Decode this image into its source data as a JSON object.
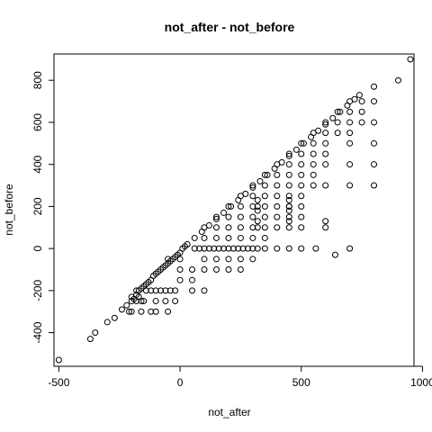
{
  "chart_data": {
    "type": "scatter",
    "title": "not_after - not_before",
    "xlabel": "not_after",
    "ylabel": "not_before",
    "xlim": [
      -520,
      965
    ],
    "ylim": [
      -560,
      925
    ],
    "xticks": [
      -500,
      0,
      500,
      1000
    ],
    "yticks": [
      -400,
      -200,
      0,
      200,
      400,
      600,
      800
    ],
    "grid": false,
    "legend": "none",
    "marker": "open-circle",
    "series": [
      {
        "points": [
          [
            -500,
            -530
          ],
          [
            -370,
            -430
          ],
          [
            -350,
            -400
          ],
          [
            -300,
            -350
          ],
          [
            -270,
            -330
          ],
          [
            -240,
            -290
          ],
          [
            -220,
            -270
          ],
          [
            -210,
            -300
          ],
          [
            -200,
            -300
          ],
          [
            -200,
            -250
          ],
          [
            -190,
            -240
          ],
          [
            -180,
            -220
          ],
          [
            -170,
            -200
          ],
          [
            -160,
            -190
          ],
          [
            -150,
            -180
          ],
          [
            -140,
            -170
          ],
          [
            -130,
            -160
          ],
          [
            -120,
            -150
          ],
          [
            -110,
            -130
          ],
          [
            -100,
            -120
          ],
          [
            -90,
            -110
          ],
          [
            -80,
            -100
          ],
          [
            -70,
            -90
          ],
          [
            -60,
            -80
          ],
          [
            -50,
            -70
          ],
          [
            -40,
            -60
          ],
          [
            -30,
            -50
          ],
          [
            -20,
            -40
          ],
          [
            -10,
            -30
          ],
          [
            0,
            -20
          ],
          [
            10,
            0
          ],
          [
            20,
            10
          ],
          [
            -200,
            -230
          ],
          [
            -180,
            -250
          ],
          [
            -160,
            -250
          ],
          [
            -140,
            -200
          ],
          [
            -120,
            -200
          ],
          [
            -100,
            -200
          ],
          [
            -80,
            -200
          ],
          [
            -60,
            -200
          ],
          [
            -40,
            -200
          ],
          [
            -20,
            -200
          ],
          [
            -100,
            -250
          ],
          [
            -100,
            -300
          ],
          [
            -60,
            -250
          ],
          [
            -50,
            -300
          ],
          [
            -20,
            -250
          ],
          [
            50,
            -200
          ],
          [
            100,
            -200
          ],
          [
            0,
            -150
          ],
          [
            50,
            -150
          ],
          [
            -180,
            -200
          ],
          [
            -160,
            -300
          ],
          [
            -120,
            -300
          ],
          [
            -150,
            -250
          ],
          [
            -170,
            -230
          ],
          [
            30,
            20
          ],
          [
            60,
            50
          ],
          [
            90,
            80
          ],
          [
            120,
            110
          ],
          [
            150,
            140
          ],
          [
            180,
            170
          ],
          [
            210,
            200
          ],
          [
            240,
            230
          ],
          [
            270,
            260
          ],
          [
            300,
            290
          ],
          [
            330,
            320
          ],
          [
            360,
            350
          ],
          [
            390,
            380
          ],
          [
            420,
            410
          ],
          [
            450,
            440
          ],
          [
            480,
            470
          ],
          [
            510,
            500
          ],
          [
            540,
            530
          ],
          [
            570,
            560
          ],
          [
            600,
            590
          ],
          [
            630,
            620
          ],
          [
            660,
            650
          ],
          [
            690,
            680
          ],
          [
            720,
            710
          ],
          [
            740,
            730
          ],
          [
            60,
            0
          ],
          [
            80,
            0
          ],
          [
            100,
            0
          ],
          [
            120,
            0
          ],
          [
            140,
            0
          ],
          [
            160,
            0
          ],
          [
            180,
            0
          ],
          [
            200,
            0
          ],
          [
            220,
            0
          ],
          [
            240,
            0
          ],
          [
            260,
            0
          ],
          [
            280,
            0
          ],
          [
            300,
            0
          ],
          [
            320,
            0
          ],
          [
            350,
            0
          ],
          [
            400,
            0
          ],
          [
            450,
            0
          ],
          [
            500,
            0
          ],
          [
            560,
            0
          ],
          [
            700,
            0
          ],
          [
            100,
            -50
          ],
          [
            150,
            -50
          ],
          [
            200,
            -50
          ],
          [
            250,
            -50
          ],
          [
            300,
            -50
          ],
          [
            100,
            -100
          ],
          [
            150,
            -100
          ],
          [
            200,
            -100
          ],
          [
            250,
            -100
          ],
          [
            50,
            -100
          ],
          [
            0,
            -100
          ],
          [
            0,
            -50
          ],
          [
            -50,
            -50
          ],
          [
            640,
            -30
          ],
          [
            100,
            50
          ],
          [
            150,
            50
          ],
          [
            200,
            50
          ],
          [
            250,
            50
          ],
          [
            300,
            50
          ],
          [
            350,
            50
          ],
          [
            100,
            100
          ],
          [
            150,
            100
          ],
          [
            200,
            100
          ],
          [
            250,
            100
          ],
          [
            300,
            100
          ],
          [
            350,
            100
          ],
          [
            400,
            100
          ],
          [
            450,
            100
          ],
          [
            150,
            150
          ],
          [
            200,
            150
          ],
          [
            250,
            150
          ],
          [
            300,
            150
          ],
          [
            350,
            150
          ],
          [
            400,
            150
          ],
          [
            450,
            150
          ],
          [
            200,
            200
          ],
          [
            250,
            200
          ],
          [
            300,
            200
          ],
          [
            350,
            200
          ],
          [
            400,
            200
          ],
          [
            450,
            200
          ],
          [
            500,
            200
          ],
          [
            250,
            250
          ],
          [
            300,
            250
          ],
          [
            350,
            250
          ],
          [
            400,
            250
          ],
          [
            450,
            250
          ],
          [
            500,
            250
          ],
          [
            300,
            300
          ],
          [
            350,
            300
          ],
          [
            400,
            300
          ],
          [
            450,
            300
          ],
          [
            500,
            300
          ],
          [
            550,
            300
          ],
          [
            600,
            300
          ],
          [
            700,
            300
          ],
          [
            800,
            300
          ],
          [
            350,
            350
          ],
          [
            400,
            350
          ],
          [
            450,
            350
          ],
          [
            500,
            350
          ],
          [
            550,
            350
          ],
          [
            400,
            400
          ],
          [
            450,
            400
          ],
          [
            500,
            400
          ],
          [
            550,
            400
          ],
          [
            600,
            400
          ],
          [
            700,
            400
          ],
          [
            800,
            400
          ],
          [
            450,
            450
          ],
          [
            500,
            450
          ],
          [
            550,
            450
          ],
          [
            600,
            450
          ],
          [
            500,
            500
          ],
          [
            550,
            500
          ],
          [
            600,
            500
          ],
          [
            700,
            500
          ],
          [
            800,
            500
          ],
          [
            550,
            550
          ],
          [
            600,
            550
          ],
          [
            650,
            550
          ],
          [
            700,
            550
          ],
          [
            600,
            600
          ],
          [
            650,
            600
          ],
          [
            700,
            600
          ],
          [
            750,
            600
          ],
          [
            800,
            600
          ],
          [
            650,
            650
          ],
          [
            700,
            650
          ],
          [
            750,
            650
          ],
          [
            700,
            700
          ],
          [
            750,
            700
          ],
          [
            800,
            700
          ],
          [
            800,
            770
          ],
          [
            900,
            800
          ],
          [
            950,
            900
          ],
          [
            320,
            230
          ],
          [
            320,
            200
          ],
          [
            320,
            180
          ],
          [
            320,
            130
          ],
          [
            320,
            100
          ],
          [
            450,
            230
          ],
          [
            450,
            200
          ],
          [
            450,
            180
          ],
          [
            450,
            130
          ],
          [
            600,
            130
          ],
          [
            600,
            100
          ],
          [
            500,
            150
          ],
          [
            500,
            100
          ]
        ]
      }
    ]
  }
}
